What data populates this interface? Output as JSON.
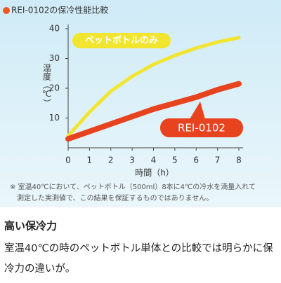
{
  "chart_data": {
    "type": "line",
    "title": "REI-0102の保冷性能比較",
    "x_label": "時間（h）",
    "y_label": "温度（℃）",
    "x": [
      0,
      1,
      2,
      3,
      4,
      5,
      6,
      7,
      8
    ],
    "series": [
      {
        "name": "ペットボトルのみ",
        "color": "#f2e530",
        "values": [
          4,
          12,
          19,
          24,
          28,
          31,
          33.5,
          35.5,
          37
        ]
      },
      {
        "name": "REI-0102",
        "color": "#e8431f",
        "values": [
          3,
          5.5,
          8,
          10.5,
          13,
          15,
          17,
          19.5,
          21.5
        ]
      }
    ],
    "xlim": [
      0,
      8
    ],
    "xticks": [
      0,
      1,
      2,
      3,
      4,
      5,
      6,
      7,
      8
    ],
    "ylim": [
      0,
      40
    ],
    "yticks": [
      10,
      20,
      30,
      40
    ],
    "note": [
      "※ 室温40℃において、ペットボトル（500ml）8本に4℃の冷水を満量入れて",
      "測定した実測値で、この結果を保証するものではありません。"
    ]
  },
  "section": {
    "heading": "高い保冷力",
    "body": [
      "室温40℃の時のペットボトル単体との比較では明らかに保",
      "冷力の違いが。"
    ]
  }
}
